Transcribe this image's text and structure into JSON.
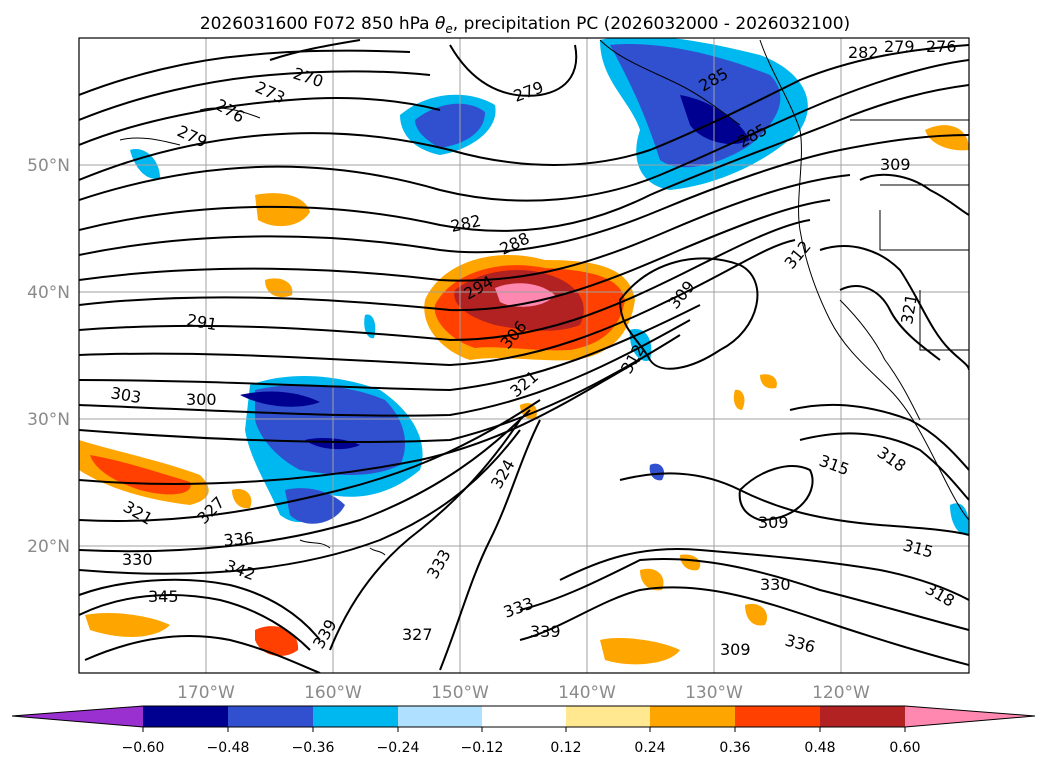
{
  "title": "2026031600 F072 850 hPa θe, precipitation PC (2026032000 - 2026032100)",
  "title_parts": {
    "prefix": "2026031600 F072 850 hPa ",
    "theta": "θ",
    "sub": "e",
    "suffix": ", precipitation PC (2026032000 - 2026032100)"
  },
  "map": {
    "lat_labels": [
      "50°N",
      "40°N",
      "30°N",
      "20°N"
    ],
    "lon_labels": [
      "170°W",
      "160°W",
      "150°W",
      "140°W",
      "130°W",
      "120°W"
    ],
    "gridlines": true,
    "contour_labels": [
      "270",
      "273",
      "276",
      "279",
      "279",
      "282",
      "282",
      "279",
      "276",
      "285",
      "285",
      "288",
      "294",
      "291",
      "300",
      "303",
      "306",
      "309",
      "309",
      "312",
      "312",
      "315",
      "315",
      "318",
      "318",
      "321",
      "321",
      "321",
      "324",
      "327",
      "327",
      "330",
      "330",
      "333",
      "333",
      "336",
      "336",
      "339",
      "339",
      "342",
      "345",
      "309",
      "309"
    ]
  },
  "colorbar": {
    "ticks": [
      "−0.60",
      "−0.48",
      "−0.36",
      "−0.24",
      "−0.12",
      "0.12",
      "0.24",
      "0.36",
      "0.48",
      "0.60"
    ],
    "colors": [
      "#9b30d0",
      "#000090",
      "#3050d0",
      "#00b8f0",
      "#b0e0ff",
      "#ffffff",
      "#ffe890",
      "#ffa500",
      "#ff4000",
      "#b22222",
      "#ff88b0"
    ],
    "extend": "both"
  },
  "colors": {
    "land_outline": "#000000",
    "contour": "#000000",
    "grid": "#a0a0a0",
    "tick_label": "#8a8a8a"
  }
}
